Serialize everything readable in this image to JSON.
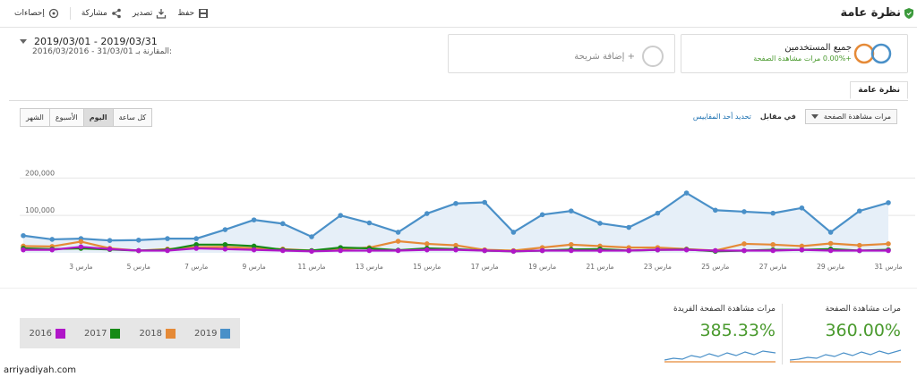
{
  "header": {
    "title": "نظرة عامة",
    "actions": [
      {
        "label": "حفظ",
        "icon": "save-icon"
      },
      {
        "label": "تصدير",
        "icon": "export-icon"
      },
      {
        "label": "مشاركة",
        "icon": "share-icon"
      },
      {
        "label": "إحصاءات",
        "icon": "insights-icon"
      }
    ]
  },
  "date_range": {
    "primary": "2019/03/01 - 2019/03/31",
    "compare_prefix": "المقارنة بـ:",
    "compare": "2016/03/2016 - 31/03/01"
  },
  "segments": {
    "segment1_title": "جميع المستخدمين",
    "segment1_sub": "+0.00% مرات مشاهدة الصفحة",
    "add_segment": "+ إضافة شريحة"
  },
  "tabs": {
    "overview": "نظرة عامة"
  },
  "controls": {
    "metric_select": "مرات مشاهدة الصفحة",
    "vs": "في مقابل",
    "select_metric_link": "تحديد أحد المقاييس",
    "granularity": [
      "كل ساعة",
      "اليوم",
      "الأسبوع",
      "الشهر"
    ],
    "active_granularity": "اليوم"
  },
  "chart_data": {
    "type": "line",
    "x_tick_labels": [
      "مارس 3",
      "مارس 5",
      "مارس 7",
      "مارس 9",
      "مارس 11",
      "مارس 13",
      "مارس 15",
      "مارس 17",
      "مارس 19",
      "مارس 21",
      "مارس 23",
      "مارس 25",
      "مارس 27",
      "مارس 29",
      "مارس 31"
    ],
    "y_tick_labels": [
      "100,000",
      "200,000"
    ],
    "ylim": [
      0,
      215000
    ],
    "series": [
      {
        "name": "2019",
        "color": "#4a90c8",
        "values": [
          46000,
          36000,
          38000,
          33000,
          34000,
          38000,
          38000,
          62000,
          88000,
          78000,
          43000,
          100000,
          80000,
          55000,
          105000,
          132000,
          135000,
          55000,
          102000,
          112000,
          79000,
          68000,
          106000,
          160000,
          114000,
          110000,
          106000,
          120000,
          55000,
          112000,
          134000
        ]
      },
      {
        "name": "2018",
        "color": "#e58a37",
        "values": [
          18000,
          17000,
          30000,
          12000,
          6000,
          10000,
          15000,
          16000,
          12000,
          10000,
          6000,
          10000,
          14000,
          31000,
          24000,
          20000,
          8000,
          6000,
          14000,
          22000,
          18000,
          14000,
          14000,
          10000,
          6000,
          24000,
          22000,
          18000,
          25000,
          20000,
          24000
        ]
      },
      {
        "name": "2017",
        "color": "#178a17",
        "values": [
          12000,
          10000,
          12000,
          9000,
          6000,
          8000,
          22000,
          22000,
          18000,
          8000,
          6000,
          14000,
          12000,
          7000,
          12000,
          10000,
          6000,
          4000,
          6000,
          9000,
          10000,
          6000,
          8000,
          9000,
          4000,
          6000,
          8000,
          8000,
          10000,
          6000,
          8000
        ]
      },
      {
        "name": "2016",
        "color": "#b016c8",
        "values": [
          8000,
          8000,
          16000,
          10000,
          6000,
          6000,
          12000,
          10000,
          8000,
          6000,
          4000,
          6000,
          6000,
          6000,
          8000,
          8000,
          6000,
          4000,
          6000,
          6000,
          6000,
          6000,
          8000,
          8000,
          6000,
          6000,
          6000,
          8000,
          6000,
          6000,
          6000
        ]
      }
    ],
    "grid": true
  },
  "legend": [
    {
      "label": "2016",
      "color": "#b016c8"
    },
    {
      "label": "2017",
      "color": "#178a17"
    },
    {
      "label": "2018",
      "color": "#e58a37"
    },
    {
      "label": "2019",
      "color": "#4a90c8"
    }
  ],
  "kpis": [
    {
      "label": "مرات مشاهدة الصفحة",
      "value": "360.00%"
    },
    {
      "label": "مرات مشاهدة الصفحة الفريدة",
      "value": "385.33%"
    }
  ],
  "watermark": "arriyadiyah.com"
}
